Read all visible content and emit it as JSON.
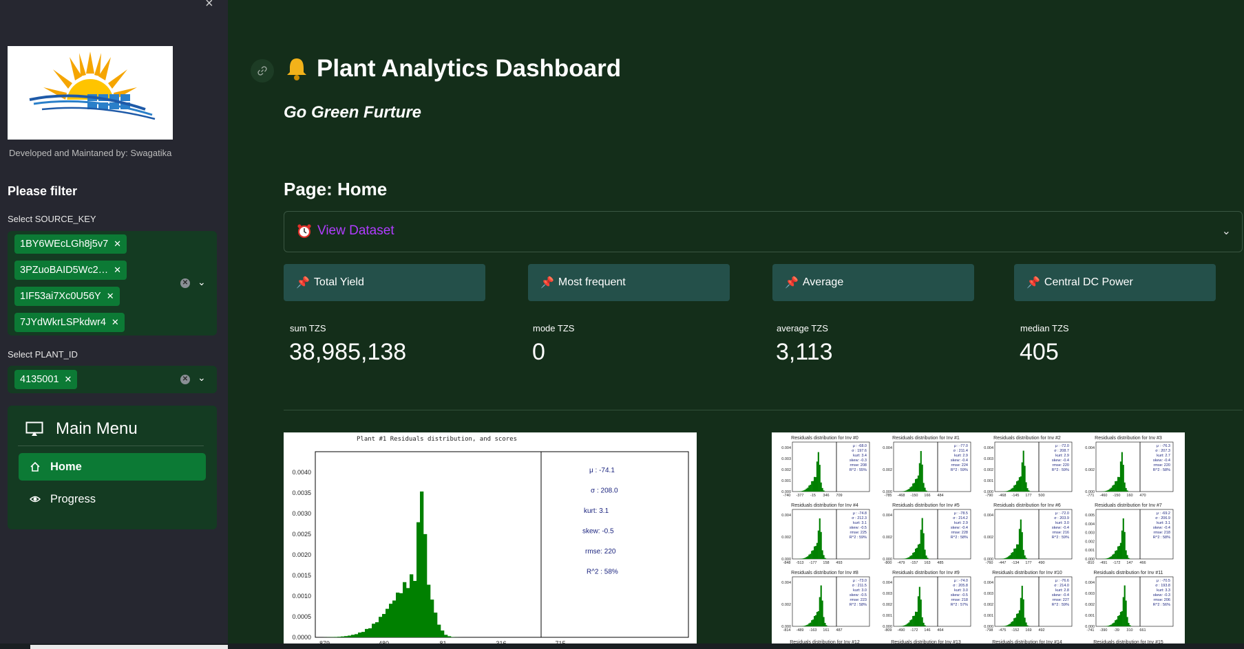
{
  "sidebar": {
    "close_glyph": "×",
    "developer_note": "Developed and Maintaned by: Swagatika",
    "filter_title": "Please filter",
    "source_key": {
      "label": "Select SOURCE_KEY",
      "selected": [
        "1BY6WEcLGh8j5v7",
        "3PZuoBAID5Wc2…",
        "1IF53ai7Xc0U56Y",
        "7JYdWkrLSPkdwr4"
      ]
    },
    "plant_id": {
      "label": "Select PLANT_ID",
      "selected": [
        "4135001"
      ]
    },
    "menu": {
      "title": "Main Menu",
      "items": [
        {
          "label": "Home",
          "icon": "house-icon",
          "active": true
        },
        {
          "label": "Progress",
          "icon": "eye-icon",
          "active": false
        }
      ]
    }
  },
  "header": {
    "title": "Plant Analytics Dashboard",
    "title_icon": "bell-icon",
    "subtitle": "Go Green Furture"
  },
  "page": {
    "heading": "Page: Home",
    "expander": {
      "label": "View Dataset",
      "icon": "alarm-clock-icon"
    }
  },
  "kpis": [
    {
      "label": "Total Yield",
      "icon": "pushpin-icon",
      "metric_label": "sum TZS",
      "metric_value": "38,985,138"
    },
    {
      "label": "Most frequent",
      "icon": "pushpin-icon",
      "metric_label": "mode TZS",
      "metric_value": "0"
    },
    {
      "label": "Average",
      "icon": "pushpin-icon",
      "metric_label": "average TZS",
      "metric_value": "3,113"
    },
    {
      "label": "Central DC Power",
      "icon": "pushpin-icon",
      "metric_label": "median TZS",
      "metric_value": "405"
    }
  ],
  "plot_main": {
    "title": "Plant #1 Residuals distribution, and scores",
    "y_ticks": [
      "0.0040",
      "0.0035",
      "0.0030",
      "0.0025",
      "0.0020",
      "0.0015",
      "0.0010",
      "0.0005",
      "0.0000"
    ],
    "x_ticks": [
      "-879",
      "-480",
      "-81",
      "316",
      "715"
    ],
    "stats": [
      "μ : -74.1",
      "σ : 208.0",
      "kurt:   3.1",
      "skew:  -0.5",
      "rmse:   220",
      "R^2 :   58%"
    ],
    "colors": {
      "bars": "#008000"
    }
  },
  "plot_grid": {
    "panels": [
      {
        "title": "Residuals distribution for Inv #0",
        "stats": [
          "μ : -68.0",
          "σ : 197.6",
          "kurt: 3.4",
          "skew: -0.3",
          "rmse: 208",
          "R^2 : 55%"
        ],
        "x_ticks": [
          "-740",
          "-377",
          "-15",
          "346",
          "709"
        ],
        "y_ticks": [
          "0.004",
          "0.003",
          "0.002",
          "0.001",
          "0.000"
        ]
      },
      {
        "title": "Residuals distribution for Inv #1",
        "stats": [
          "μ : -77.0",
          "σ : 211.4",
          "kurt: 2.9",
          "skew: -0.4",
          "rmse: 224",
          "R^2 : 59%"
        ],
        "x_ticks": [
          "-785",
          "-468",
          "-150",
          "166",
          "484"
        ],
        "y_ticks": [
          "0.004",
          "0.002",
          "0.000"
        ]
      },
      {
        "title": "Residuals distribution for Inv #2",
        "stats": [
          "μ : -72.0",
          "σ : 208.7",
          "kurt: 2.9",
          "skew: -0.4",
          "rmse: 220",
          "R^2 : 59%"
        ],
        "x_ticks": [
          "-790",
          "-468",
          "-145",
          "177",
          "500"
        ],
        "y_ticks": [
          "0.004",
          "0.003",
          "0.002",
          "0.001",
          "0.000"
        ]
      },
      {
        "title": "Residuals distribution for Inv #3",
        "stats": [
          "μ : -76.3",
          "σ : 207.3",
          "kurt: 2.7",
          "skew: -0.4",
          "rmse: 220",
          "R^2 : 58%"
        ],
        "x_ticks": [
          "-771",
          "-460",
          "-150",
          "160",
          "470"
        ],
        "y_ticks": [
          "0.004",
          "0.002",
          "0.000"
        ]
      },
      {
        "title": "Residuals distribution for Inv #4",
        "stats": [
          "μ : -74.8",
          "σ : 212.3",
          "kurt: 3.1",
          "skew: -0.5",
          "rmse: 225",
          "R^2 : 59%"
        ],
        "x_ticks": [
          "-848",
          "-513",
          "-177",
          "158",
          "493"
        ],
        "y_ticks": [
          "0.004",
          "0.002",
          "0.000"
        ]
      },
      {
        "title": "Residuals distribution for Inv #5",
        "stats": [
          "μ : -78.5",
          "σ : 214.2",
          "kurt: 2.9",
          "skew: -0.4",
          "rmse: 228",
          "R^2 : 58%"
        ],
        "x_ticks": [
          "-800",
          "-479",
          "-157",
          "163",
          "485"
        ],
        "y_ticks": [
          "0.004",
          "0.002",
          "0.000"
        ]
      },
      {
        "title": "Residuals distribution for Inv #6",
        "stats": [
          "μ : -72.0",
          "σ : 203.9",
          "kurt: 3.0",
          "skew: -0.4",
          "rmse: 216",
          "R^2 : 59%"
        ],
        "x_ticks": [
          "-760",
          "-447",
          "-134",
          "177",
          "490"
        ],
        "y_ticks": [
          "0.004",
          "0.002",
          "0.000"
        ]
      },
      {
        "title": "Residuals distribution for Inv #7",
        "stats": [
          "μ : -69.2",
          "σ : 206.9",
          "kurt: 3.1",
          "skew: -0.4",
          "rmse: 218",
          "R^2 : 58%"
        ],
        "x_ticks": [
          "-810",
          "-491",
          "-172",
          "147",
          "466"
        ],
        "y_ticks": [
          "0.005",
          "0.004",
          "0.003",
          "0.002",
          "0.001",
          "0.000"
        ]
      },
      {
        "title": "Residuals distribution for Inv #8",
        "stats": [
          "μ : -73.0",
          "σ : 211.5",
          "kurt: 3.0",
          "skew: -0.5",
          "rmse: 223",
          "R^2 : 58%"
        ],
        "x_ticks": [
          "-814",
          "-489",
          "-163",
          "161",
          "487"
        ],
        "y_ticks": [
          "0.004",
          "0.002",
          "0.000"
        ]
      },
      {
        "title": "Residuals distribution for Inv #9",
        "stats": [
          "μ : -74.0",
          "σ : 205.8",
          "kurt: 3.0",
          "skew: -0.5",
          "rmse: 218",
          "R^2 : 57%"
        ],
        "x_ticks": [
          "-809",
          "-490",
          "-172",
          "146",
          "464"
        ],
        "y_ticks": [
          "0.004",
          "0.003",
          "0.002",
          "0.001",
          "0.000"
        ]
      },
      {
        "title": "Residuals distribution for Inv #10",
        "stats": [
          "μ : -76.6",
          "σ : 214.0",
          "kurt: 2.8",
          "skew: -0.4",
          "rmse: 227",
          "R^2 : 59%"
        ],
        "x_ticks": [
          "-798",
          "-475",
          "-152",
          "169",
          "492"
        ],
        "y_ticks": [
          "0.004",
          "0.003",
          "0.002",
          "0.001",
          "0.000"
        ]
      },
      {
        "title": "Residuals distribution for Inv #11",
        "stats": [
          "μ : -70.5",
          "σ : 193.8",
          "kurt: 3.3",
          "skew: -0.3",
          "rmse: 206",
          "R^2 : 56%"
        ],
        "x_ticks": [
          "-741",
          "-390",
          "-39",
          "310",
          "661"
        ],
        "y_ticks": [
          "0.004",
          "0.003",
          "0.002",
          "0.001",
          "0.000"
        ]
      }
    ],
    "footer_titles": [
      "Residuals distribution for Inv #12",
      "Residuals distribution for Inv #13",
      "Residuals distribution for Inv #14",
      "Residuals distribution for Inv #15"
    ]
  },
  "colors": {
    "accent": "#0c7a35",
    "background": "#142e1a",
    "sidebar": "#262730",
    "expander_text": "#b03cff"
  }
}
